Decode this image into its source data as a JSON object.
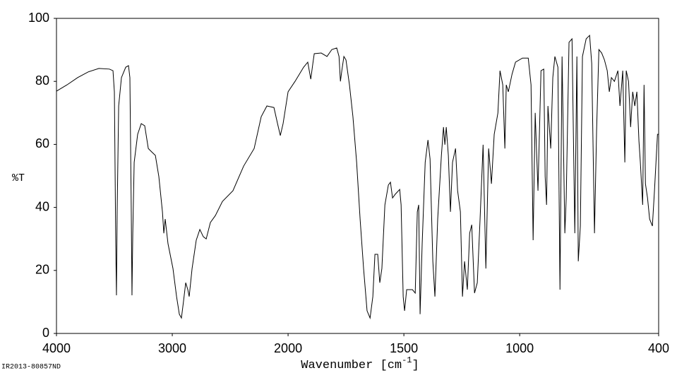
{
  "chart_data": {
    "type": "line",
    "ylabel": "%T",
    "xlabel": [
      "Wavenumber [cm",
      "-1",
      "]"
    ],
    "footnote": "IR2013-80857ND",
    "xlim": [
      4000,
      400
    ],
    "xticks": [
      4000,
      3000,
      2000,
      1500,
      1000,
      400
    ],
    "x_scale_change": {
      "at": 2000,
      "factor": 2
    },
    "ylim": [
      0,
      100
    ],
    "yticks": [
      0,
      20,
      40,
      60,
      80,
      100
    ],
    "grid": false,
    "color": "#000000",
    "x": [
      4000,
      3909,
      3817,
      3726,
      3634,
      3543,
      3512,
      3500,
      3488,
      3482,
      3476,
      3463,
      3439,
      3402,
      3378,
      3366,
      3354,
      3348,
      3341,
      3329,
      3299,
      3268,
      3238,
      3207,
      3177,
      3146,
      3116,
      3085,
      3073,
      3061,
      3037,
      2994,
      2963,
      2939,
      2921,
      2902,
      2884,
      2866,
      2854,
      2829,
      2793,
      2762,
      2732,
      2707,
      2671,
      2628,
      2567,
      2476,
      2384,
      2293,
      2232,
      2183,
      2122,
      2091,
      2067,
      2043,
      2000,
      1970,
      1933,
      1915,
      1902,
      1893,
      1887,
      1857,
      1832,
      1811,
      1790,
      1780,
      1774,
      1768,
      1759,
      1750,
      1735,
      1720,
      1704,
      1689,
      1674,
      1659,
      1646,
      1634,
      1625,
      1613,
      1604,
      1595,
      1582,
      1567,
      1558,
      1549,
      1537,
      1518,
      1512,
      1503,
      1497,
      1488,
      1476,
      1463,
      1451,
      1442,
      1436,
      1430,
      1421,
      1408,
      1396,
      1387,
      1375,
      1366,
      1354,
      1338,
      1329,
      1323,
      1317,
      1308,
      1299,
      1290,
      1277,
      1268,
      1256,
      1247,
      1238,
      1226,
      1216,
      1207,
      1195,
      1183,
      1171,
      1158,
      1146,
      1134,
      1122,
      1110,
      1094,
      1085,
      1073,
      1064,
      1058,
      1049,
      1033,
      1018,
      988,
      963,
      951,
      942,
      933,
      921,
      908,
      896,
      890,
      884,
      878,
      866,
      857,
      848,
      835,
      826,
      817,
      805,
      799,
      787,
      774,
      762,
      753,
      747,
      738,
      729,
      713,
      698,
      689,
      677,
      668,
      658,
      646,
      634,
      622,
      613,
      604,
      591,
      576,
      567,
      555,
      546,
      540,
      530,
      521,
      512,
      503,
      494,
      485,
      479,
      469,
      463,
      457,
      448,
      439,
      427,
      418,
      405,
      400
    ],
    "values": [
      76.9,
      78.9,
      81.2,
      83.0,
      84.1,
      83.9,
      83.4,
      76.7,
      27.8,
      12.1,
      38.6,
      72.2,
      81.2,
      84.5,
      85.0,
      81.2,
      38.6,
      12.1,
      31.8,
      54.3,
      63.2,
      66.6,
      65.9,
      58.7,
      57.6,
      56.5,
      49.8,
      38.6,
      31.8,
      36.3,
      28.5,
      20.6,
      11.7,
      6.1,
      4.9,
      10.5,
      16.1,
      13.9,
      11.7,
      20.6,
      29.6,
      33.0,
      30.7,
      30.0,
      35.2,
      37.4,
      41.9,
      45.3,
      53.1,
      58.7,
      68.8,
      72.2,
      71.7,
      66.6,
      62.8,
      66.6,
      76.7,
      80.0,
      84.5,
      86.1,
      80.7,
      85.7,
      88.8,
      89.0,
      87.9,
      90.1,
      90.6,
      87.9,
      80.0,
      83.4,
      87.9,
      86.8,
      78.9,
      68.8,
      54.3,
      36.3,
      20.6,
      7.2,
      4.9,
      11.7,
      25.1,
      25.1,
      16.1,
      20.6,
      40.8,
      47.1,
      48.0,
      43.0,
      44.2,
      45.7,
      40.8,
      11.7,
      7.2,
      13.9,
      13.9,
      13.9,
      12.8,
      38.6,
      40.8,
      6.1,
      28.5,
      54.3,
      61.4,
      55.4,
      22.9,
      11.7,
      36.3,
      56.5,
      65.5,
      59.9,
      65.5,
      56.5,
      38.6,
      54.3,
      58.7,
      45.3,
      38.6,
      11.7,
      22.9,
      13.9,
      31.8,
      34.5,
      12.8,
      16.1,
      36.3,
      59.9,
      20.6,
      58.7,
      47.5,
      63.2,
      70.0,
      83.4,
      78.9,
      58.7,
      78.9,
      76.7,
      82.3,
      86.1,
      87.4,
      87.4,
      78.9,
      29.6,
      70.0,
      45.3,
      83.4,
      83.9,
      49.8,
      40.8,
      72.2,
      58.7,
      81.2,
      87.9,
      84.5,
      13.9,
      87.9,
      31.8,
      43.0,
      92.4,
      93.5,
      31.8,
      87.9,
      22.9,
      34.1,
      87.9,
      93.5,
      94.6,
      85.7,
      31.8,
      64.3,
      90.1,
      89.0,
      86.8,
      83.4,
      76.7,
      81.2,
      80.0,
      83.4,
      72.2,
      83.4,
      54.3,
      83.4,
      80.0,
      65.5,
      76.7,
      72.2,
      76.7,
      61.0,
      54.3,
      40.8,
      78.9,
      47.5,
      43.0,
      36.3,
      34.1,
      45.3,
      63.2,
      63.2
    ]
  }
}
